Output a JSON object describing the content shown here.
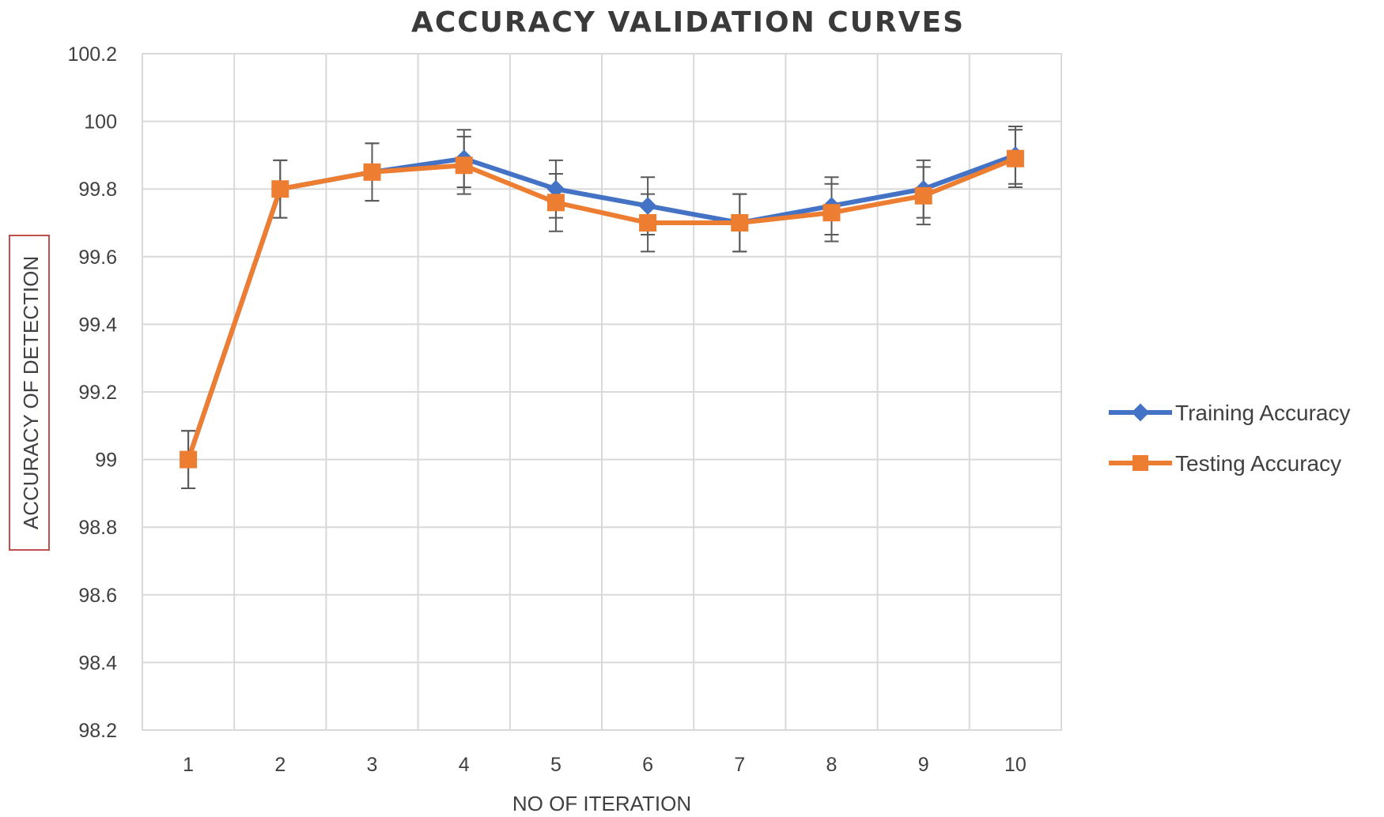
{
  "chart_data": {
    "type": "line",
    "title": "ACCURACY VALIDATION CURVES",
    "xlabel": "NO OF ITERATION",
    "ylabel": "ACCURACY OF DETECTION",
    "categories": [
      "1",
      "2",
      "3",
      "4",
      "5",
      "6",
      "7",
      "8",
      "9",
      "10"
    ],
    "ylim": [
      98.2,
      100.2
    ],
    "yticks": [
      "98.2",
      "98.4",
      "98.6",
      "98.8",
      "99",
      "99.2",
      "99.4",
      "99.6",
      "99.8",
      "100",
      "100.2"
    ],
    "grid": true,
    "legend_position": "right",
    "error_bar": 0.085,
    "series": [
      {
        "name": "Training Accuracy",
        "color": "#4472c4",
        "marker": "diamond",
        "values": [
          99.0,
          99.8,
          99.85,
          99.89,
          99.8,
          99.75,
          99.7,
          99.75,
          99.8,
          99.9
        ]
      },
      {
        "name": "Testing Accuracy",
        "color": "#ed7d31",
        "marker": "square",
        "values": [
          99.0,
          99.8,
          99.85,
          99.87,
          99.76,
          99.7,
          99.7,
          99.73,
          99.78,
          99.89
        ]
      }
    ]
  }
}
